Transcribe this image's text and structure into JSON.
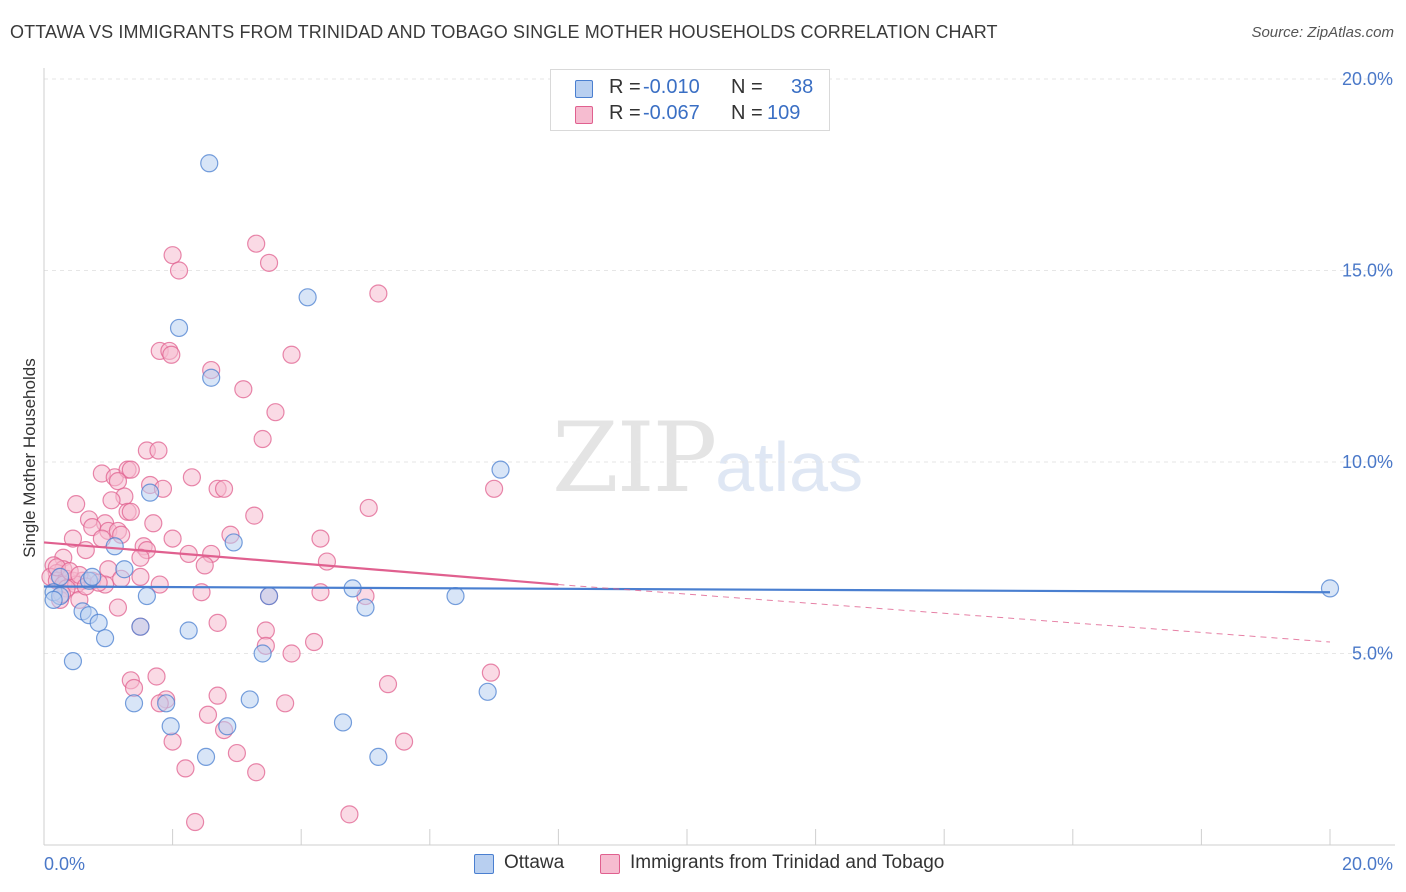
{
  "title": "OTTAWA VS IMMIGRANTS FROM TRINIDAD AND TOBAGO SINGLE MOTHER HOUSEHOLDS CORRELATION CHART",
  "source": "Source: ZipAtlas.com",
  "watermark": {
    "zip": "ZIP",
    "atlas": "atlas"
  },
  "colors": {
    "blue": "#4a7fd0",
    "blue_fill": "#b8cff0",
    "pink": "#e0608f",
    "pink_fill": "#f6bcd0",
    "tick": "#4a78c8"
  },
  "legend": {
    "rows": [
      {
        "r_label": "R =",
        "r_value": "-0.010",
        "n_label": "N =",
        "n_value": "38"
      },
      {
        "r_label": "R =",
        "r_value": "-0.067",
        "n_label": "N =",
        "n_value": "109"
      }
    ]
  },
  "bottom_legend": {
    "series1": "Ottawa",
    "series2": "Immigrants from Trinidad and Tobago"
  },
  "chart_data": {
    "type": "scatter",
    "title": "OTTAWA VS IMMIGRANTS FROM TRINIDAD AND TOBAGO SINGLE MOTHER HOUSEHOLDS CORRELATION CHART",
    "xlabel": "",
    "ylabel": "Single Mother Households",
    "xlim": [
      0,
      20
    ],
    "ylim": [
      0,
      20
    ],
    "x_tick_labels": [
      "0.0%",
      "20.0%"
    ],
    "y_ticks": [
      5,
      10,
      15,
      20
    ],
    "y_tick_labels": [
      "5.0%",
      "10.0%",
      "15.0%",
      "20.0%"
    ],
    "grid": true,
    "series": [
      {
        "name": "Ottawa",
        "r": -0.01,
        "n": 38,
        "trend": {
          "x0": 0,
          "y0": 6.75,
          "x1": 20,
          "y1": 6.6
        },
        "points": [
          [
            2.57,
            17.8
          ],
          [
            4.1,
            14.3
          ],
          [
            2.1,
            13.5
          ],
          [
            2.6,
            12.2
          ],
          [
            7.1,
            9.8
          ],
          [
            1.65,
            9.2
          ],
          [
            2.95,
            7.9
          ],
          [
            1.1,
            7.8
          ],
          [
            1.25,
            7.2
          ],
          [
            0.25,
            7.0
          ],
          [
            0.7,
            6.9
          ],
          [
            0.75,
            7.0
          ],
          [
            0.15,
            6.6
          ],
          [
            0.25,
            6.5
          ],
          [
            0.15,
            6.4
          ],
          [
            1.6,
            6.5
          ],
          [
            3.5,
            6.5
          ],
          [
            4.8,
            6.7
          ],
          [
            5.0,
            6.2
          ],
          [
            6.4,
            6.5
          ],
          [
            0.6,
            6.1
          ],
          [
            0.7,
            6.0
          ],
          [
            0.85,
            5.8
          ],
          [
            1.5,
            5.7
          ],
          [
            2.25,
            5.6
          ],
          [
            0.95,
            5.4
          ],
          [
            3.4,
            5.0
          ],
          [
            0.45,
            4.8
          ],
          [
            6.9,
            4.0
          ],
          [
            1.4,
            3.7
          ],
          [
            1.9,
            3.7
          ],
          [
            3.2,
            3.8
          ],
          [
            1.97,
            3.1
          ],
          [
            2.85,
            3.1
          ],
          [
            4.65,
            3.2
          ],
          [
            2.52,
            2.3
          ],
          [
            5.2,
            2.3
          ],
          [
            20.0,
            6.7
          ]
        ]
      },
      {
        "name": "Immigrants from Trinidad and Tobago",
        "r": -0.067,
        "n": 109,
        "trend": {
          "x0": 0,
          "y0": 7.9,
          "x1": 8,
          "y1": 6.8,
          "dash_x1": 20,
          "dash_y1": 5.3
        },
        "points": [
          [
            3.3,
            15.7
          ],
          [
            2.0,
            15.4
          ],
          [
            3.5,
            15.2
          ],
          [
            2.1,
            15.0
          ],
          [
            5.2,
            14.4
          ],
          [
            1.8,
            12.9
          ],
          [
            1.95,
            12.9
          ],
          [
            1.98,
            12.8
          ],
          [
            3.85,
            12.8
          ],
          [
            2.6,
            12.4
          ],
          [
            3.1,
            11.9
          ],
          [
            3.6,
            11.3
          ],
          [
            3.4,
            10.6
          ],
          [
            1.6,
            10.3
          ],
          [
            1.78,
            10.3
          ],
          [
            0.9,
            9.7
          ],
          [
            1.1,
            9.6
          ],
          [
            1.3,
            9.8
          ],
          [
            1.35,
            9.8
          ],
          [
            2.3,
            9.6
          ],
          [
            1.15,
            9.5
          ],
          [
            1.65,
            9.4
          ],
          [
            2.7,
            9.3
          ],
          [
            2.8,
            9.3
          ],
          [
            7.0,
            9.3
          ],
          [
            1.85,
            9.3
          ],
          [
            1.25,
            9.1
          ],
          [
            1.05,
            9.0
          ],
          [
            0.5,
            8.9
          ],
          [
            5.05,
            8.8
          ],
          [
            1.3,
            8.7
          ],
          [
            1.35,
            8.7
          ],
          [
            3.27,
            8.6
          ],
          [
            0.7,
            8.5
          ],
          [
            0.95,
            8.4
          ],
          [
            1.7,
            8.4
          ],
          [
            0.75,
            8.3
          ],
          [
            1.0,
            8.2
          ],
          [
            1.15,
            8.2
          ],
          [
            0.9,
            8.0
          ],
          [
            1.2,
            8.1
          ],
          [
            0.45,
            8.0
          ],
          [
            2.0,
            8.0
          ],
          [
            2.9,
            8.1
          ],
          [
            4.3,
            8.0
          ],
          [
            1.55,
            7.8
          ],
          [
            0.65,
            7.7
          ],
          [
            1.6,
            7.7
          ],
          [
            2.25,
            7.6
          ],
          [
            2.6,
            7.6
          ],
          [
            0.3,
            7.5
          ],
          [
            1.5,
            7.5
          ],
          [
            4.4,
            7.4
          ],
          [
            2.5,
            7.3
          ],
          [
            0.15,
            7.3
          ],
          [
            0.3,
            7.2
          ],
          [
            0.2,
            7.1
          ],
          [
            0.25,
            7.0
          ],
          [
            1.0,
            7.2
          ],
          [
            0.1,
            7.0
          ],
          [
            0.35,
            6.95
          ],
          [
            0.2,
            6.9
          ],
          [
            0.45,
            6.9
          ],
          [
            0.6,
            6.9
          ],
          [
            0.75,
            6.9
          ],
          [
            1.5,
            7.0
          ],
          [
            0.3,
            6.8
          ],
          [
            0.5,
            6.8
          ],
          [
            0.35,
            6.7
          ],
          [
            0.95,
            6.8
          ],
          [
            1.8,
            6.8
          ],
          [
            2.45,
            6.6
          ],
          [
            4.3,
            6.6
          ],
          [
            5.0,
            6.5
          ],
          [
            3.5,
            6.5
          ],
          [
            0.25,
            6.4
          ],
          [
            0.55,
            6.4
          ],
          [
            1.15,
            6.2
          ],
          [
            2.7,
            5.8
          ],
          [
            1.5,
            5.7
          ],
          [
            3.45,
            5.6
          ],
          [
            4.2,
            5.3
          ],
          [
            3.45,
            5.2
          ],
          [
            3.85,
            5.0
          ],
          [
            6.95,
            4.5
          ],
          [
            1.75,
            4.4
          ],
          [
            1.35,
            4.3
          ],
          [
            5.35,
            4.2
          ],
          [
            1.4,
            4.1
          ],
          [
            2.7,
            3.9
          ],
          [
            1.9,
            3.8
          ],
          [
            1.8,
            3.7
          ],
          [
            3.75,
            3.7
          ],
          [
            2.55,
            3.4
          ],
          [
            2.8,
            3.0
          ],
          [
            2.0,
            2.7
          ],
          [
            5.6,
            2.7
          ],
          [
            3.0,
            2.4
          ],
          [
            2.2,
            2.0
          ],
          [
            3.3,
            1.9
          ],
          [
            2.35,
            0.6
          ],
          [
            4.75,
            0.8
          ],
          [
            0.2,
            7.25
          ],
          [
            0.4,
            7.15
          ],
          [
            0.55,
            7.05
          ],
          [
            0.65,
            6.75
          ],
          [
            1.2,
            6.95
          ],
          [
            0.85,
            6.85
          ],
          [
            0.28,
            6.55
          ]
        ]
      }
    ]
  }
}
